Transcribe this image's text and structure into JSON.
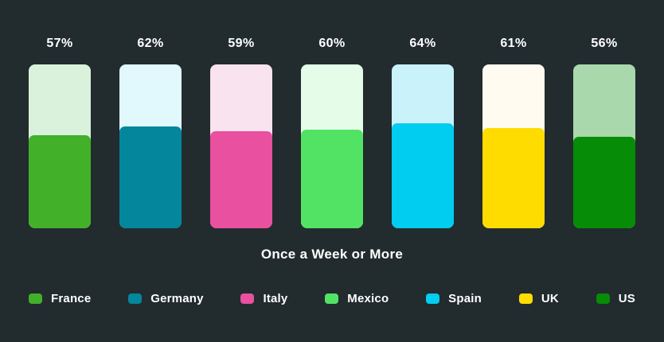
{
  "page": {
    "background": "#222B2E",
    "text_color": "#FFFFFF"
  },
  "chart_data": {
    "type": "bar",
    "title": "Once a Week or More",
    "categories": [
      "France",
      "Germany",
      "Italy",
      "Mexico",
      "Spain",
      "UK",
      "US"
    ],
    "values": [
      57,
      62,
      59,
      60,
      64,
      61,
      56
    ],
    "value_labels": [
      "57%",
      "62%",
      "59%",
      "60%",
      "64%",
      "61%",
      "56%"
    ],
    "series_colors": [
      "#43B02A",
      "#04869D",
      "#E9509F",
      "#53E364",
      "#01CDF1",
      "#FFDC00",
      "#078C07"
    ],
    "track_colors": [
      "#DAF2DC",
      "#E1F8FC",
      "#F9E3EE",
      "#E5FDE8",
      "#C9F2FB",
      "#FFFBF0",
      "#A8D8AB"
    ],
    "xlabel": "",
    "ylabel": "",
    "ylim": [
      0,
      100
    ],
    "grid": false,
    "legend_position": "bottom",
    "value_label_position": "above-bar",
    "bar_style": "rounded-capsule-with-light-track"
  }
}
